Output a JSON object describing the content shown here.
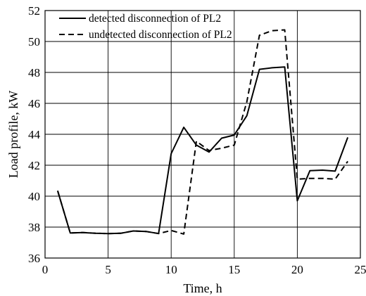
{
  "chart_data": {
    "type": "line",
    "xlabel": "Time,  h",
    "ylabel": "Load profile,  kW",
    "xlim": [
      0,
      25
    ],
    "ylim": [
      36,
      52
    ],
    "xticks": [
      0,
      5,
      10,
      15,
      20,
      25
    ],
    "yticks": [
      36,
      38,
      40,
      42,
      44,
      46,
      48,
      50,
      52
    ],
    "grid": true,
    "legend_position": "top-left",
    "series": [
      {
        "name": "detected disconnection of PL2",
        "line_style": "solid",
        "color": "#000000",
        "x": [
          1,
          2,
          3,
          4,
          5,
          6,
          7,
          8,
          9,
          10,
          11,
          12,
          13,
          14,
          15,
          16,
          17,
          18,
          19,
          20,
          21,
          22,
          23,
          24
        ],
        "y": [
          40.35,
          37.62,
          37.65,
          37.6,
          37.58,
          37.6,
          37.75,
          37.72,
          37.58,
          42.75,
          44.45,
          43.3,
          42.85,
          43.75,
          43.95,
          45.2,
          48.2,
          48.3,
          48.35,
          39.7,
          41.65,
          41.68,
          41.62,
          43.8
        ]
      },
      {
        "name": "undetected disconnection of PL2",
        "line_style": "dashed",
        "color": "#000000",
        "x": [
          1,
          2,
          3,
          4,
          5,
          6,
          7,
          8,
          9,
          10,
          11,
          12,
          13,
          14,
          15,
          16,
          17,
          18,
          19,
          20,
          21,
          22,
          23,
          24
        ],
        "y": [
          40.35,
          37.62,
          37.65,
          37.6,
          37.58,
          37.6,
          37.75,
          37.72,
          37.58,
          37.78,
          37.55,
          43.55,
          42.95,
          43.1,
          43.3,
          46.1,
          50.4,
          50.7,
          50.75,
          41.1,
          41.15,
          41.15,
          41.1,
          42.25
        ]
      }
    ]
  }
}
